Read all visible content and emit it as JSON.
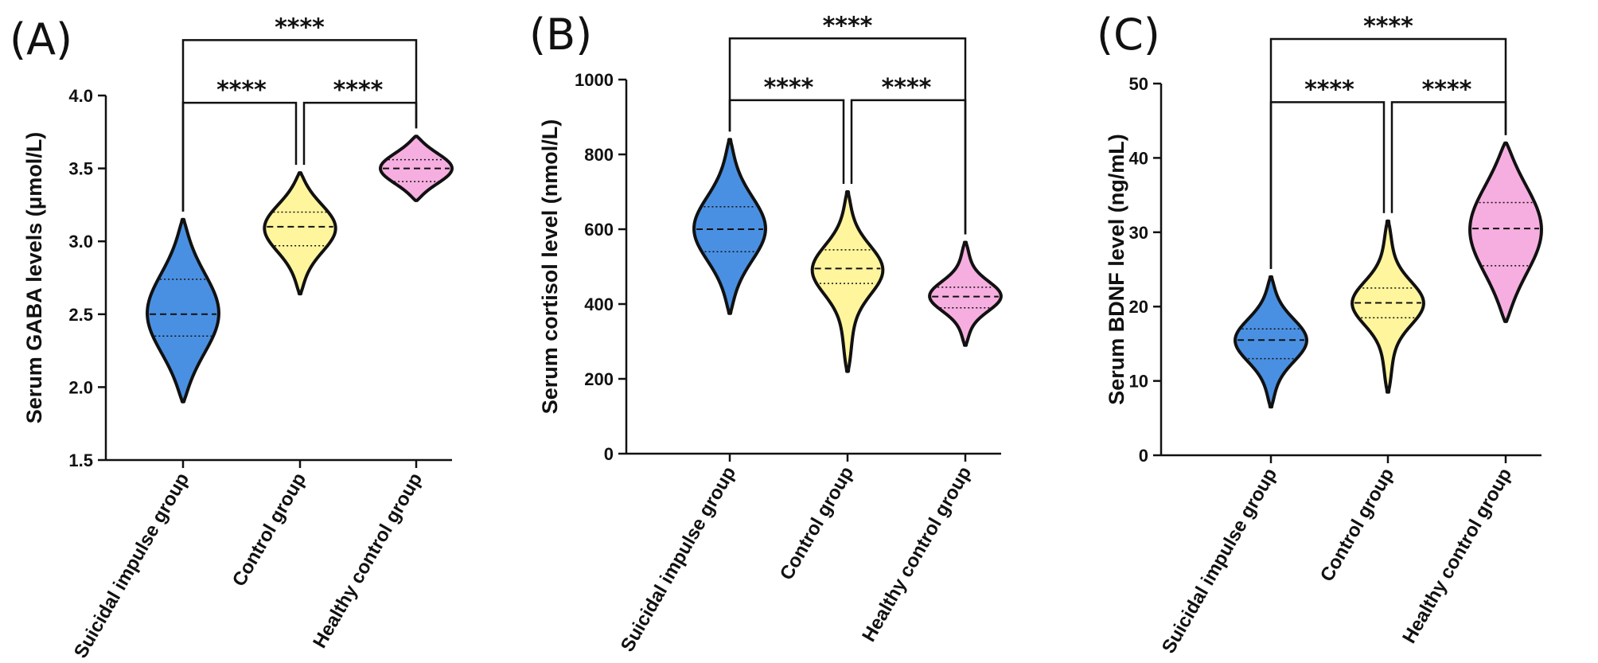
{
  "chart_data": [
    {
      "type": "violin",
      "panel_label": "(A)",
      "ylabel": "Serum GABA levels (μmol/L)",
      "ylim": [
        1.5,
        4.0
      ],
      "yticks": [
        "1.5",
        "2.0",
        "2.5",
        "3.0",
        "3.5",
        "4.0"
      ],
      "categories": [
        "Suicidal impulse group",
        "Control group",
        "Healthy control group"
      ],
      "colors": [
        "#4a90e2",
        "#fff59d",
        "#f6aee0"
      ],
      "groups": [
        {
          "min": 1.9,
          "q1": 2.35,
          "median": 2.5,
          "q3": 2.74,
          "max": 3.15
        },
        {
          "min": 2.64,
          "q1": 2.97,
          "median": 3.1,
          "q3": 3.2,
          "max": 3.47
        },
        {
          "min": 3.28,
          "q1": 3.41,
          "median": 3.5,
          "q3": 3.56,
          "max": 3.72
        }
      ],
      "significance": [
        {
          "from": 0,
          "to": 1,
          "label": "****",
          "y": 3.95
        },
        {
          "from": 1,
          "to": 2,
          "label": "****",
          "y": 3.95
        },
        {
          "from": 0,
          "to": 2,
          "label": "****",
          "y": 4.38
        }
      ]
    },
    {
      "type": "violin",
      "panel_label": "(B)",
      "ylabel": "Serum cortisol level (nmol/L)",
      "ylim": [
        0,
        1000
      ],
      "yticks": [
        "0",
        "200",
        "400",
        "600",
        "800",
        "1000"
      ],
      "categories": [
        "Suicidal impulse group",
        "Control group",
        "Healthy control group"
      ],
      "colors": [
        "#4a90e2",
        "#fff59d",
        "#f6aee0"
      ],
      "groups": [
        {
          "min": 375,
          "q1": 540,
          "median": 600,
          "q3": 660,
          "max": 840
        },
        {
          "min": 220,
          "q1": 455,
          "median": 495,
          "q3": 545,
          "max": 700
        },
        {
          "min": 290,
          "q1": 390,
          "median": 420,
          "q3": 445,
          "max": 565
        }
      ],
      "significance": [
        {
          "from": 0,
          "to": 1,
          "label": "****",
          "y": 945
        },
        {
          "from": 1,
          "to": 2,
          "label": "****",
          "y": 945
        },
        {
          "from": 0,
          "to": 2,
          "label": "****",
          "y": 1110
        }
      ]
    },
    {
      "type": "violin",
      "panel_label": "(C)",
      "ylabel": "Serum BDNF level (ng/mL)",
      "ylim": [
        0,
        50
      ],
      "yticks": [
        "0",
        "10",
        "20",
        "30",
        "40",
        "50"
      ],
      "categories": [
        "Suicidal impulse group",
        "Control group",
        "Healthy control group"
      ],
      "colors": [
        "#4a90e2",
        "#fff59d",
        "#f6aee0"
      ],
      "groups": [
        {
          "min": 6.5,
          "q1": 13,
          "median": 15.5,
          "q3": 17,
          "max": 24
        },
        {
          "min": 8.5,
          "q1": 18.5,
          "median": 20.5,
          "q3": 22.5,
          "max": 31.5
        },
        {
          "min": 18,
          "q1": 25.5,
          "median": 30.5,
          "q3": 34,
          "max": 42
        }
      ],
      "significance": [
        {
          "from": 0,
          "to": 1,
          "label": "****",
          "y": 47.5
        },
        {
          "from": 1,
          "to": 2,
          "label": "****",
          "y": 47.5
        },
        {
          "from": 0,
          "to": 2,
          "label": "****",
          "y": 56
        }
      ]
    }
  ]
}
